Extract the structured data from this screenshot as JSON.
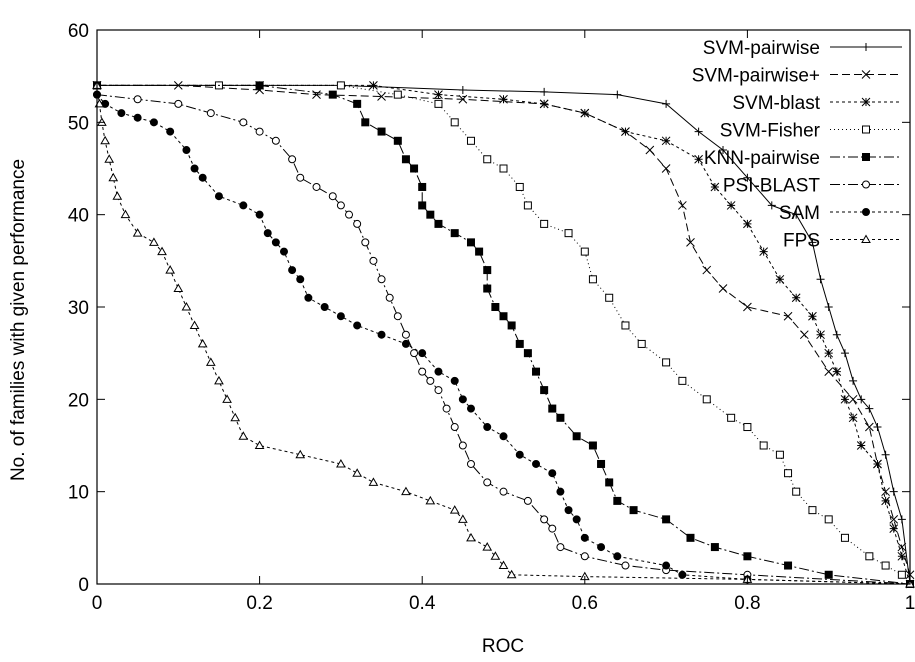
{
  "chart_data": {
    "type": "line",
    "title": "",
    "xlabel": "ROC",
    "ylabel": "No. of families with given performance",
    "xlim": [
      0,
      1
    ],
    "ylim": [
      0,
      60
    ],
    "xticks": [
      0,
      0.2,
      0.4,
      0.6,
      0.8,
      1
    ],
    "xtick_labels": [
      "0",
      "0.2",
      "0.4",
      "0.6",
      "0.8",
      "1"
    ],
    "yticks": [
      0,
      10,
      20,
      30,
      40,
      50,
      60
    ],
    "ytick_labels": [
      "0",
      "10",
      "20",
      "30",
      "40",
      "50",
      "60"
    ],
    "grid": false,
    "legend_position": "top-right",
    "series": [
      {
        "name": "SVM-pairwise",
        "dash": "",
        "marker": "plus",
        "points": [
          [
            0,
            54
          ],
          [
            0.15,
            54
          ],
          [
            0.3,
            54
          ],
          [
            0.45,
            53.5
          ],
          [
            0.55,
            53.3
          ],
          [
            0.64,
            53
          ],
          [
            0.7,
            52
          ],
          [
            0.74,
            49
          ],
          [
            0.77,
            47
          ],
          [
            0.8,
            44
          ],
          [
            0.83,
            41
          ],
          [
            0.86,
            40
          ],
          [
            0.88,
            37
          ],
          [
            0.89,
            33
          ],
          [
            0.9,
            30
          ],
          [
            0.91,
            27
          ],
          [
            0.92,
            25
          ],
          [
            0.93,
            22
          ],
          [
            0.94,
            20
          ],
          [
            0.95,
            19
          ],
          [
            0.96,
            17
          ],
          [
            0.97,
            14
          ],
          [
            0.98,
            10
          ],
          [
            0.99,
            7
          ],
          [
            1.0,
            0
          ]
        ]
      },
      {
        "name": "SVM-pairwise+",
        "dash": "8,4",
        "marker": "x",
        "points": [
          [
            0,
            54
          ],
          [
            0.1,
            54
          ],
          [
            0.2,
            53.5
          ],
          [
            0.27,
            53
          ],
          [
            0.35,
            52.8
          ],
          [
            0.45,
            52.5
          ],
          [
            0.55,
            52
          ],
          [
            0.6,
            51
          ],
          [
            0.65,
            49
          ],
          [
            0.68,
            47
          ],
          [
            0.7,
            45
          ],
          [
            0.72,
            41
          ],
          [
            0.73,
            37
          ],
          [
            0.75,
            34
          ],
          [
            0.77,
            32
          ],
          [
            0.8,
            30
          ],
          [
            0.85,
            29
          ],
          [
            0.87,
            27
          ],
          [
            0.9,
            23
          ],
          [
            0.93,
            20
          ],
          [
            0.95,
            17
          ],
          [
            0.96,
            13
          ],
          [
            0.97,
            10
          ],
          [
            0.98,
            7
          ],
          [
            0.99,
            4
          ],
          [
            1.0,
            1
          ]
        ]
      },
      {
        "name": "SVM-blast",
        "dash": "3,3",
        "marker": "star",
        "points": [
          [
            0,
            54
          ],
          [
            0.2,
            54
          ],
          [
            0.34,
            54
          ],
          [
            0.42,
            53
          ],
          [
            0.5,
            52.5
          ],
          [
            0.55,
            52
          ],
          [
            0.6,
            51
          ],
          [
            0.65,
            49
          ],
          [
            0.7,
            48
          ],
          [
            0.74,
            46
          ],
          [
            0.76,
            43
          ],
          [
            0.78,
            41
          ],
          [
            0.8,
            39
          ],
          [
            0.82,
            36
          ],
          [
            0.84,
            33
          ],
          [
            0.86,
            31
          ],
          [
            0.88,
            29
          ],
          [
            0.89,
            27
          ],
          [
            0.9,
            25
          ],
          [
            0.91,
            23
          ],
          [
            0.92,
            20
          ],
          [
            0.93,
            18
          ],
          [
            0.94,
            15
          ],
          [
            0.96,
            13
          ],
          [
            0.97,
            9
          ],
          [
            0.98,
            6
          ],
          [
            0.99,
            3
          ],
          [
            1.0,
            0
          ]
        ]
      },
      {
        "name": "SVM-Fisher",
        "dash": "1,3",
        "marker": "square-open",
        "points": [
          [
            0,
            54
          ],
          [
            0.15,
            54
          ],
          [
            0.3,
            54
          ],
          [
            0.37,
            53
          ],
          [
            0.42,
            52
          ],
          [
            0.44,
            50
          ],
          [
            0.46,
            48
          ],
          [
            0.48,
            46
          ],
          [
            0.5,
            45
          ],
          [
            0.52,
            43
          ],
          [
            0.53,
            41
          ],
          [
            0.55,
            39
          ],
          [
            0.58,
            38
          ],
          [
            0.6,
            36
          ],
          [
            0.61,
            33
          ],
          [
            0.63,
            31
          ],
          [
            0.65,
            28
          ],
          [
            0.67,
            26
          ],
          [
            0.7,
            24
          ],
          [
            0.72,
            22
          ],
          [
            0.75,
            20
          ],
          [
            0.78,
            18
          ],
          [
            0.8,
            17
          ],
          [
            0.82,
            15
          ],
          [
            0.84,
            14
          ],
          [
            0.85,
            12
          ],
          [
            0.86,
            10
          ],
          [
            0.88,
            8
          ],
          [
            0.9,
            7
          ],
          [
            0.92,
            5
          ],
          [
            0.95,
            3
          ],
          [
            0.97,
            2
          ],
          [
            0.99,
            1
          ],
          [
            1.0,
            0
          ]
        ]
      },
      {
        "name": "KNN-pairwise",
        "dash": "10,3,2,3",
        "marker": "square-filled",
        "points": [
          [
            0,
            54
          ],
          [
            0.2,
            54
          ],
          [
            0.29,
            53
          ],
          [
            0.32,
            52
          ],
          [
            0.33,
            50
          ],
          [
            0.35,
            49
          ],
          [
            0.37,
            48
          ],
          [
            0.38,
            46
          ],
          [
            0.39,
            45
          ],
          [
            0.4,
            43
          ],
          [
            0.4,
            41
          ],
          [
            0.41,
            40
          ],
          [
            0.42,
            39
          ],
          [
            0.44,
            38
          ],
          [
            0.46,
            37
          ],
          [
            0.47,
            36
          ],
          [
            0.48,
            34
          ],
          [
            0.48,
            32
          ],
          [
            0.49,
            30
          ],
          [
            0.5,
            29
          ],
          [
            0.51,
            28
          ],
          [
            0.52,
            26
          ],
          [
            0.53,
            25
          ],
          [
            0.54,
            23
          ],
          [
            0.55,
            21
          ],
          [
            0.56,
            19
          ],
          [
            0.57,
            18
          ],
          [
            0.59,
            16
          ],
          [
            0.61,
            15
          ],
          [
            0.62,
            13
          ],
          [
            0.63,
            11
          ],
          [
            0.64,
            9
          ],
          [
            0.66,
            8
          ],
          [
            0.7,
            7
          ],
          [
            0.73,
            5
          ],
          [
            0.76,
            4
          ],
          [
            0.8,
            3
          ],
          [
            0.85,
            2
          ],
          [
            0.9,
            1
          ],
          [
            1.0,
            0
          ]
        ]
      },
      {
        "name": "PSI-BLAST",
        "dash": "10,3,2,3",
        "marker": "circle-open",
        "points": [
          [
            0,
            53
          ],
          [
            0.05,
            52.5
          ],
          [
            0.1,
            52
          ],
          [
            0.14,
            51
          ],
          [
            0.18,
            50
          ],
          [
            0.2,
            49
          ],
          [
            0.22,
            48
          ],
          [
            0.24,
            46
          ],
          [
            0.25,
            44
          ],
          [
            0.27,
            43
          ],
          [
            0.29,
            42
          ],
          [
            0.3,
            41
          ],
          [
            0.31,
            40
          ],
          [
            0.32,
            39
          ],
          [
            0.33,
            37
          ],
          [
            0.34,
            35
          ],
          [
            0.35,
            33
          ],
          [
            0.36,
            31
          ],
          [
            0.37,
            29
          ],
          [
            0.38,
            27
          ],
          [
            0.39,
            25
          ],
          [
            0.4,
            23
          ],
          [
            0.41,
            22
          ],
          [
            0.42,
            21
          ],
          [
            0.43,
            19
          ],
          [
            0.44,
            17
          ],
          [
            0.45,
            15
          ],
          [
            0.46,
            13
          ],
          [
            0.48,
            11
          ],
          [
            0.5,
            10
          ],
          [
            0.53,
            9
          ],
          [
            0.55,
            7
          ],
          [
            0.56,
            6
          ],
          [
            0.57,
            4
          ],
          [
            0.6,
            3
          ],
          [
            0.65,
            2
          ],
          [
            0.7,
            1.5
          ],
          [
            0.8,
            1
          ],
          [
            1.0,
            0
          ]
        ]
      },
      {
        "name": "SAM",
        "dash": "3,3",
        "marker": "circle-filled",
        "points": [
          [
            0,
            53
          ],
          [
            0.01,
            52
          ],
          [
            0.03,
            51
          ],
          [
            0.05,
            50.5
          ],
          [
            0.07,
            50
          ],
          [
            0.09,
            49
          ],
          [
            0.11,
            47
          ],
          [
            0.12,
            45
          ],
          [
            0.13,
            44
          ],
          [
            0.15,
            42
          ],
          [
            0.18,
            41
          ],
          [
            0.2,
            40
          ],
          [
            0.21,
            38
          ],
          [
            0.22,
            37
          ],
          [
            0.23,
            36
          ],
          [
            0.24,
            34
          ],
          [
            0.25,
            33
          ],
          [
            0.26,
            31
          ],
          [
            0.28,
            30
          ],
          [
            0.3,
            29
          ],
          [
            0.32,
            28
          ],
          [
            0.35,
            27
          ],
          [
            0.38,
            26
          ],
          [
            0.4,
            25
          ],
          [
            0.42,
            23
          ],
          [
            0.44,
            22
          ],
          [
            0.45,
            20
          ],
          [
            0.46,
            19
          ],
          [
            0.48,
            17
          ],
          [
            0.5,
            16
          ],
          [
            0.52,
            14
          ],
          [
            0.54,
            13
          ],
          [
            0.56,
            12
          ],
          [
            0.57,
            10
          ],
          [
            0.58,
            8
          ],
          [
            0.59,
            7
          ],
          [
            0.6,
            5
          ],
          [
            0.62,
            4
          ],
          [
            0.64,
            3
          ],
          [
            0.7,
            2
          ],
          [
            0.72,
            1
          ],
          [
            0.8,
            0.5
          ],
          [
            1.0,
            0
          ]
        ]
      },
      {
        "name": "FPS",
        "dash": "3,3",
        "marker": "triangle-open",
        "points": [
          [
            0,
            54
          ],
          [
            0.003,
            52
          ],
          [
            0.006,
            50
          ],
          [
            0.01,
            48
          ],
          [
            0.015,
            46
          ],
          [
            0.02,
            44
          ],
          [
            0.025,
            42
          ],
          [
            0.035,
            40
          ],
          [
            0.05,
            38
          ],
          [
            0.07,
            37
          ],
          [
            0.08,
            36
          ],
          [
            0.09,
            34
          ],
          [
            0.1,
            32
          ],
          [
            0.11,
            30
          ],
          [
            0.12,
            28
          ],
          [
            0.13,
            26
          ],
          [
            0.14,
            24
          ],
          [
            0.15,
            22
          ],
          [
            0.16,
            20
          ],
          [
            0.17,
            18
          ],
          [
            0.18,
            16
          ],
          [
            0.2,
            15
          ],
          [
            0.25,
            14
          ],
          [
            0.3,
            13
          ],
          [
            0.32,
            12
          ],
          [
            0.34,
            11
          ],
          [
            0.38,
            10
          ],
          [
            0.41,
            9
          ],
          [
            0.44,
            8
          ],
          [
            0.45,
            7
          ],
          [
            0.46,
            5
          ],
          [
            0.48,
            4
          ],
          [
            0.49,
            3
          ],
          [
            0.5,
            2
          ],
          [
            0.51,
            1
          ],
          [
            0.6,
            0.8
          ],
          [
            0.8,
            0.5
          ],
          [
            1.0,
            0
          ]
        ]
      }
    ]
  }
}
